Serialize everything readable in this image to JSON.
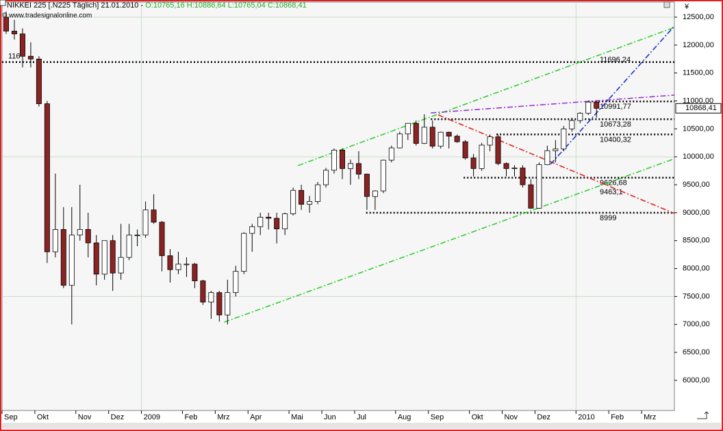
{
  "chart_data": {
    "type": "candlestick",
    "title": "NIKKEI 225 [.N225 Täglich] 21.01.2010 -",
    "title_ohlc": "O:10765,16 H:10886,64 L:10765,04 C:10868,41",
    "subtitle": "© www.tradesignalonline.com",
    "currency": "¥",
    "categories": [
      "Sep",
      null,
      null,
      null,
      "Okt",
      null,
      null,
      null,
      null,
      "Nov",
      null,
      null,
      null,
      "Dez",
      null,
      null,
      null,
      "2009",
      null,
      null,
      null,
      null,
      "Feb",
      null,
      null,
      null,
      "Mrz",
      null,
      null,
      null,
      "Apr",
      null,
      null,
      null,
      null,
      "Mai",
      null,
      null,
      null,
      "Jun",
      null,
      null,
      null,
      "Jul",
      null,
      null,
      null,
      null,
      "Aug",
      null,
      null,
      null,
      "Sep",
      null,
      null,
      null,
      null,
      "Okt",
      null,
      null,
      null,
      "Nov",
      null,
      null,
      null,
      "Dez",
      null,
      null,
      null,
      null,
      "2010",
      null,
      null,
      null,
      "Feb",
      null,
      null,
      null,
      "Mrz",
      null,
      null,
      null
    ],
    "open": [
      12500,
      12250,
      12200,
      11800,
      11750,
      10950,
      8300,
      8700,
      7700,
      8600,
      8700,
      8460,
      7900,
      8500,
      7920,
      8200,
      8600,
      8600,
      9050,
      8830,
      8230,
      7980,
      8080,
      8080,
      7780,
      7400,
      7570,
      7170,
      7570,
      7950,
      8630,
      8750,
      8920,
      8900,
      8710,
      8980,
      9400,
      9150,
      9200,
      9500,
      9760,
      10120,
      9790,
      9880,
      9690,
      9290,
      9390,
      9940,
      10160,
      10410,
      10600,
      10240,
      10530,
      10190,
      10440,
      10370,
      10270,
      9980,
      9790,
      10210,
      10360,
      9880,
      9790,
      9800,
      9500,
      9080,
      9860,
      10110,
      10140,
      10500,
      10650,
      10780,
      10980,
      null,
      null,
      null,
      null,
      null,
      null,
      null,
      null,
      null
    ],
    "high": [
      12600,
      12450,
      12300,
      12050,
      11800,
      11000,
      9700,
      9100,
      9100,
      9500,
      9000,
      8600,
      8500,
      8600,
      8800,
      8800,
      8700,
      9200,
      9330,
      8850,
      8350,
      8300,
      8200,
      8100,
      7800,
      7600,
      7600,
      7800,
      8050,
      8650,
      8800,
      9000,
      9000,
      9000,
      9000,
      9450,
      9500,
      9300,
      9550,
      9800,
      10150,
      10150,
      9950,
      10100,
      9700,
      9400,
      9950,
      10200,
      10450,
      10600,
      10650,
      10760,
      10650,
      10450,
      10450,
      10400,
      10300,
      10050,
      10250,
      10400,
      10400,
      9900,
      9850,
      9850,
      9600,
      9900,
      10200,
      10300,
      10550,
      10700,
      10800,
      10990,
      11000,
      null,
      null,
      null,
      null,
      null,
      null,
      null,
      null,
      null
    ],
    "low": [
      12200,
      12100,
      11600,
      11600,
      10900,
      8100,
      8200,
      7650,
      7000,
      8500,
      8200,
      7700,
      7800,
      7600,
      7800,
      8150,
      8400,
      8550,
      8800,
      7950,
      7750,
      7900,
      7850,
      7650,
      7350,
      7100,
      7050,
      7000,
      7500,
      7900,
      8300,
      8600,
      8700,
      8450,
      8600,
      8950,
      9050,
      9000,
      9150,
      9450,
      9700,
      9600,
      9500,
      9600,
      9050,
      9050,
      9350,
      9900,
      10150,
      10300,
      10200,
      10230,
      10150,
      10150,
      10150,
      10250,
      9950,
      9650,
      9750,
      10100,
      9850,
      9650,
      9650,
      9450,
      9070,
      9070,
      9850,
      9900,
      10100,
      10450,
      10600,
      10750,
      10700,
      null,
      null,
      null,
      null,
      null,
      null,
      null,
      null,
      null
    ],
    "close": [
      12250,
      12200,
      11800,
      11750,
      10950,
      8300,
      8700,
      7700,
      8600,
      8700,
      8460,
      7900,
      8500,
      7920,
      8200,
      8600,
      8600,
      9050,
      8830,
      8230,
      7980,
      8080,
      8080,
      7780,
      7400,
      7570,
      7170,
      7570,
      7950,
      8630,
      8750,
      8920,
      8900,
      8710,
      8980,
      9400,
      9150,
      9200,
      9500,
      9760,
      10120,
      9790,
      9880,
      9690,
      9290,
      9390,
      9940,
      10160,
      10410,
      10600,
      10240,
      10530,
      10190,
      10440,
      10370,
      10270,
      9980,
      9790,
      10210,
      10360,
      9880,
      9790,
      9800,
      9500,
      9080,
      9860,
      10110,
      10140,
      10500,
      10650,
      10780,
      10980,
      10868.41,
      null,
      null,
      null,
      null,
      null,
      null,
      null,
      null,
      null
    ],
    "up_color": "#ffffff",
    "down_color": "#8b2323",
    "ylim": [
      5460,
      12770
    ],
    "yticks": [
      {
        "value": 6000,
        "label": "6000,00"
      },
      {
        "value": 6500,
        "label": "6500,00"
      },
      {
        "value": 7000,
        "label": "7000,00"
      },
      {
        "value": 7500,
        "label": "7500,00"
      },
      {
        "value": 8000,
        "label": "8000,00"
      },
      {
        "value": 8500,
        "label": "8500,00"
      },
      {
        "value": 9000,
        "label": "9000,00"
      },
      {
        "value": 9500,
        "label": "9500,00"
      },
      {
        "value": 10000,
        "label": "10000,00"
      },
      {
        "value": 10500,
        "label": "10500,00"
      },
      {
        "value": 11000,
        "label": "11000,00"
      },
      {
        "value": 11500,
        "label": "11500,00"
      },
      {
        "value": 12000,
        "label": "12000,00"
      },
      {
        "value": 12500,
        "label": "12500,00"
      }
    ],
    "grid_lines": [
      7500,
      10000,
      12500
    ],
    "last_price": {
      "value": 10868.41,
      "label": "10868,41"
    },
    "levels": [
      {
        "value": 11696.24,
        "label": "11696,24",
        "color": "#55bb33",
        "start": 0,
        "dotted": true,
        "left_label": "116"
      },
      {
        "value": 10991.77,
        "label": "10991,77",
        "color": "#9933cc",
        "start": 71.5,
        "dotted": true
      },
      {
        "value": 10673.28,
        "label": "10673,28",
        "color": "#1a33cc",
        "start": 52.3,
        "dotted": true
      },
      {
        "value": 10400.32,
        "label": "10400,32",
        "color": "#000000",
        "start": 60.3,
        "dotted": true
      },
      {
        "value": 9626.68,
        "label": "9626,68",
        "color": "#dd2222",
        "start": 56.3,
        "dotted": true
      },
      {
        "value": 9463.1,
        "label": "9463,1",
        "color": "#33aa33",
        "start": 80,
        "dotted": false
      },
      {
        "value": 8999,
        "label": "8999",
        "color": "#000000",
        "start": 44.4,
        "dotted": true
      }
    ],
    "trendlines": [
      {
        "color": "#33cc33",
        "from": [
          36.1,
          9844
        ],
        "to": [
          82,
          12316
        ]
      },
      {
        "color": "#33cc33",
        "from": [
          27.1,
          7041
        ],
        "to": [
          82,
          9966
        ]
      },
      {
        "color": "#dd2222",
        "from": [
          53.2,
          10750
        ],
        "to": [
          82,
          8987
        ]
      },
      {
        "color": "#9933cc",
        "from": [
          52.3,
          10786
        ],
        "to": [
          82,
          11105
        ]
      },
      {
        "color": "#1a33cc",
        "from": [
          66.9,
          9868
        ],
        "to": [
          82,
          12341
        ]
      }
    ]
  }
}
